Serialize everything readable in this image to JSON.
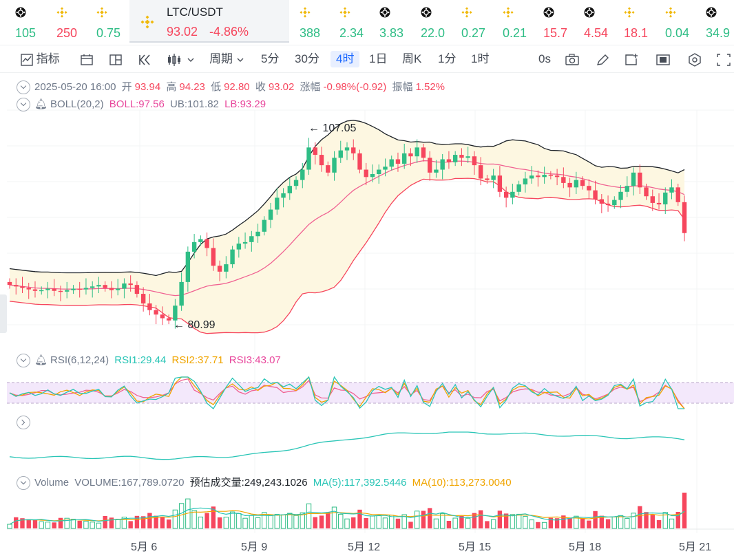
{
  "ticker": {
    "items": [
      {
        "icon": "gate-coin-icon",
        "value": "105",
        "dir": "up"
      },
      {
        "icon": "binance-coin-icon",
        "value": "250",
        "dir": "down"
      },
      {
        "icon": "binance-coin-icon",
        "value": "0.75",
        "dir": "up"
      },
      {
        "icon": "binance-coin-icon",
        "value": "388",
        "dir": "up"
      },
      {
        "icon": "binance-coin-icon",
        "value": "2.34",
        "dir": "up"
      },
      {
        "icon": "gate-coin-icon",
        "value": "3.83",
        "dir": "up"
      },
      {
        "icon": "gate-coin-icon",
        "value": "22.0",
        "dir": "up"
      },
      {
        "icon": "binance-coin-icon",
        "value": "0.27",
        "dir": "up"
      },
      {
        "icon": "binance-coin-icon",
        "value": "0.21",
        "dir": "up"
      },
      {
        "icon": "gate-coin-icon",
        "value": "15.7",
        "dir": "down"
      },
      {
        "icon": "gate-coin-icon",
        "value": "4.54",
        "dir": "down"
      },
      {
        "icon": "binance-coin-icon",
        "value": "18.1",
        "dir": "down"
      },
      {
        "icon": "binance-coin-icon",
        "value": "0.04",
        "dir": "up"
      },
      {
        "icon": "gate-coin-icon",
        "value": "34.9",
        "dir": "up"
      }
    ],
    "main": {
      "symbol": "LTC/USDT",
      "price": "93.02",
      "change": "-4.86%"
    }
  },
  "toolbar": {
    "indicators": "指标",
    "period": "周期",
    "intervals": [
      "5分",
      "30分",
      "4时",
      "1日",
      "周K",
      "1分",
      "1时"
    ],
    "active_interval": "4时",
    "zoom": "0s"
  },
  "ohlc": {
    "date": "2025-05-20 16:00",
    "open_label": "开",
    "open": "93.94",
    "high_label": "高",
    "high": "94.23",
    "low_label": "低",
    "low": "92.80",
    "close_label": "收",
    "close": "93.02",
    "change_label": "涨幅",
    "change": "-0.98%(-0.92)",
    "amp_label": "振幅",
    "amp": "1.52%"
  },
  "boll": {
    "name": "BOLL(20,2)",
    "mid": "BOLL:97.56",
    "ub": "UB:101.82",
    "lb": "LB:93.29"
  },
  "rsi": {
    "name": "RSI(6,12,24)",
    "rsi1": "RSI1:29.44",
    "rsi2": "RSI2:37.71",
    "rsi3": "RSI3:43.07"
  },
  "volume": {
    "name": "Volume",
    "vol": "VOLUME:167,789.0720",
    "est": "预估成交量:249,243.1026",
    "ma5": "MA(5):117,392.5446",
    "ma10": "MA(10):113,273.0040"
  },
  "annotations": {
    "high": "107.05",
    "low": "80.99"
  },
  "x_axis": [
    "5月 6",
    "5月 9",
    "5月 12",
    "5月 15",
    "5月 18",
    "5月 21"
  ],
  "colors": {
    "up": "#2ebd85",
    "down": "#f6465d",
    "accent": "#1c68ff",
    "boll_fill": "#fdf7e1",
    "rsi_band": "#f3e8fb"
  },
  "chart_data": {
    "type": "candlestick",
    "candles_close": [
      86,
      85.8,
      85.6,
      85.4,
      85.2,
      85.3,
      85.5,
      85.2,
      85.1,
      85.3,
      85.5,
      85.4,
      85.6,
      85.8,
      86,
      85.6,
      85.3,
      85.5,
      86.2,
      86,
      84.8,
      83.5,
      82.6,
      82,
      81.5,
      81.2,
      83.2,
      86.4,
      90.5,
      91.8,
      92.2,
      91,
      88.6,
      87.8,
      88.8,
      90.8,
      91.6,
      91.8,
      92.6,
      93.2,
      94.8,
      96.2,
      97.8,
      98.4,
      99.4,
      100.2,
      101.6,
      104.6,
      103.6,
      102.2,
      101.2,
      103.2,
      104.2,
      104.6,
      103.8,
      101.6,
      100.6,
      101,
      101.6,
      102,
      103,
      102.4,
      103.8,
      103.4,
      104.6,
      103.2,
      101.2,
      101.6,
      103,
      102.6,
      103.6,
      103.2,
      103.4,
      102.2,
      100.4,
      100.2,
      100.8,
      98.6,
      97.8,
      98.6,
      99.6,
      100.4,
      100.8,
      100.6,
      100.9,
      100.8,
      100.6,
      99.8,
      99.2,
      100.2,
      99.4,
      98.8,
      97.6,
      97,
      96.8,
      97.5,
      98.6,
      99.4,
      101.2,
      99.2,
      98,
      97.1,
      96.9,
      98.5,
      99.2,
      97.2,
      93.02
    ]
  }
}
